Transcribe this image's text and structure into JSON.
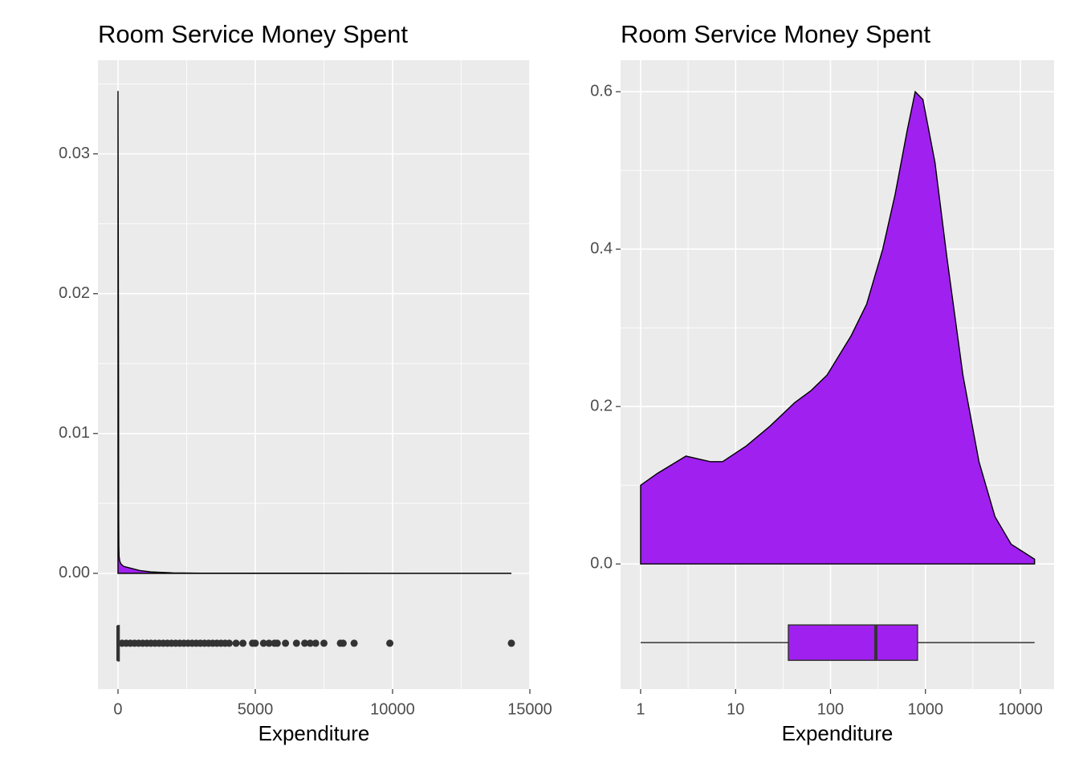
{
  "chart_data": [
    {
      "type": "density",
      "title": "Room Service Money Spent",
      "xlabel": "Expenditure",
      "color": "#A020F0",
      "x": [
        0,
        20,
        25,
        30,
        40,
        60,
        100,
        200,
        400,
        600,
        800,
        1200,
        2000,
        3000,
        14327
      ],
      "values": [
        0.0345,
        0.0138,
        0.004,
        0.002,
        0.0012,
        0.0009,
        0.0007,
        0.0005,
        0.0004,
        0.0003,
        0.0002,
        0.0001,
        3e-05,
        1e-05,
        0
      ],
      "boxplot": {
        "y": -0.005,
        "whisker_low": 0,
        "q1": 0,
        "median": 0,
        "q3": 45,
        "whisker_high": 112,
        "outliers": [
          150,
          300,
          450,
          600,
          750,
          900,
          1050,
          1200,
          1350,
          1500,
          1650,
          1800,
          1950,
          2100,
          2250,
          2400,
          2550,
          2700,
          2850,
          3000,
          3150,
          3300,
          3450,
          3600,
          3750,
          3900,
          4050,
          4300,
          4550,
          4900,
          5000,
          5300,
          5500,
          5700,
          5800,
          6100,
          6500,
          6800,
          7000,
          7200,
          7500,
          8100,
          8200,
          8600,
          9900,
          14327
        ]
      },
      "xlim": [
        -730,
        15000
      ],
      "xticks": [
        0,
        5000,
        10000,
        15000
      ],
      "minor_xticks": [
        2500,
        7500,
        12500
      ],
      "ylim": [
        -0.00828,
        0.0367
      ],
      "yticks": [
        {
          "value": 0,
          "label": "0.00"
        },
        {
          "value": 0.01,
          "label": "0.01"
        },
        {
          "value": 0.02,
          "label": "0.02"
        },
        {
          "value": 0.03,
          "label": "0.03"
        }
      ],
      "minor_yticks": [
        0.005,
        0.015,
        0.025,
        0.035
      ],
      "grid": true
    },
    {
      "type": "density",
      "title": "Room Service Money Spent",
      "xlabel": "Expenditure",
      "color": "#A020F0",
      "xscale": "log",
      "x": [
        1,
        1.5,
        3,
        5.4,
        7.3,
        13,
        23,
        42,
        62,
        92,
        165,
        240,
        355,
        480,
        640,
        780,
        940,
        1260,
        1680,
        2480,
        3660,
        5400,
        8000,
        14100
      ],
      "values": [
        0.1,
        0.115,
        0.137,
        0.13,
        0.13,
        0.15,
        0.175,
        0.205,
        0.22,
        0.24,
        0.29,
        0.33,
        0.4,
        0.47,
        0.55,
        0.6,
        0.59,
        0.51,
        0.39,
        0.24,
        0.13,
        0.06,
        0.025,
        0.006
      ],
      "boxplot": {
        "y": -0.1,
        "whisker_low": 1,
        "q1": 36,
        "median": 300,
        "q3": 825,
        "whisker_high": 14100,
        "outliers": []
      },
      "xlim": [
        0.615,
        22650
      ],
      "xticks": [
        1,
        10,
        100,
        1000,
        10000
      ],
      "minor_xticks": [
        3.16,
        31.6,
        316,
        3162
      ],
      "ylim": [
        -0.159,
        0.64
      ],
      "yticks": [
        {
          "value": 0,
          "label": "0.0"
        },
        {
          "value": 0.2,
          "label": "0.2"
        },
        {
          "value": 0.4,
          "label": "0.4"
        },
        {
          "value": 0.6,
          "label": "0.6"
        }
      ],
      "minor_yticks": [
        0.1,
        0.3,
        0.5
      ],
      "grid": true
    }
  ]
}
